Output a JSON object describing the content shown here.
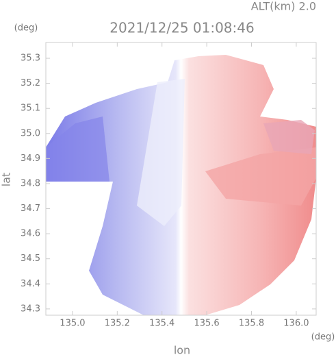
{
  "chart_data": {
    "type": "image",
    "title": "2021/12/25 01:08:46",
    "subtitle": "ALT(km) 2.0",
    "x_label": "lon",
    "y_label": "lat",
    "x_unit": "(deg)",
    "y_unit": "(deg)",
    "xlim": [
      134.881,
      136.089
    ],
    "ylim": [
      34.275,
      35.363
    ],
    "xticks": [
      {
        "value": 135.0,
        "label": "135.0"
      },
      135.2,
      135.4,
      135.6,
      135.8,
      {
        "value": 136.0,
        "label": "136.0"
      }
    ],
    "yticks": [
      34.3,
      34.4,
      34.5,
      34.6,
      34.7,
      34.8,
      34.9,
      {
        "value": 35.0,
        "label": "35.0"
      },
      35.1,
      35.2,
      35.3
    ]
  }
}
